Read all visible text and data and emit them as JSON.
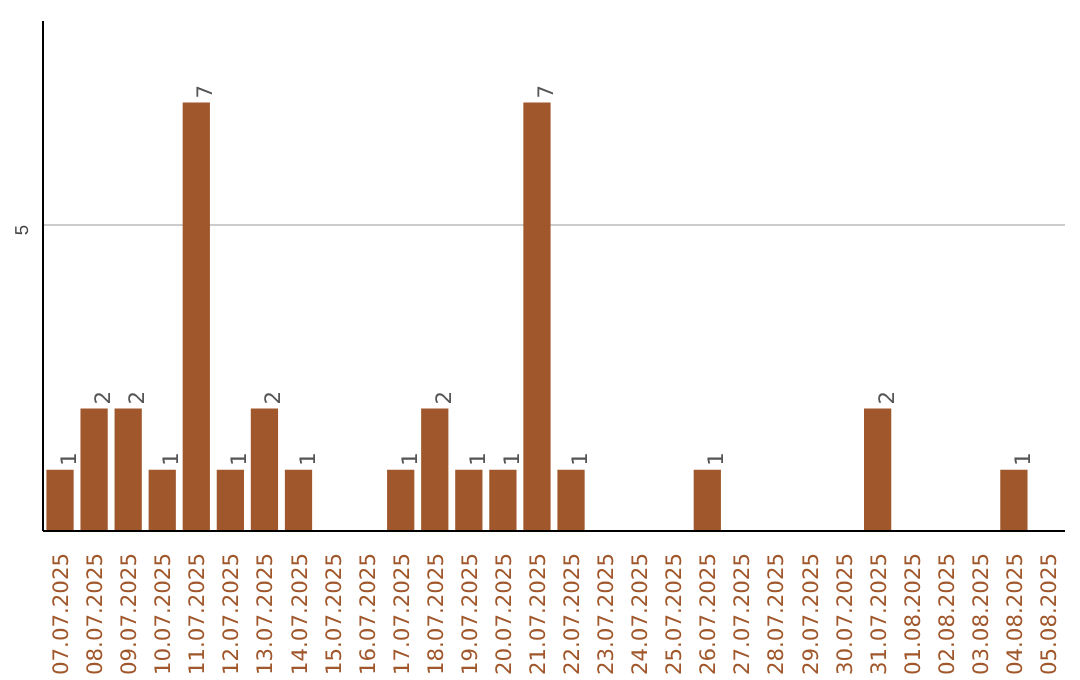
{
  "chart_data": {
    "type": "bar",
    "categories": [
      "07.07.2025",
      "08.07.2025",
      "09.07.2025",
      "10.07.2025",
      "11.07.2025",
      "12.07.2025",
      "13.07.2025",
      "14.07.2025",
      "15.07.2025",
      "16.07.2025",
      "17.07.2025",
      "18.07.2025",
      "19.07.2025",
      "20.07.2025",
      "21.07.2025",
      "22.07.2025",
      "23.07.2025",
      "24.07.2025",
      "25.07.2025",
      "26.07.2025",
      "27.07.2025",
      "28.07.2025",
      "29.07.2025",
      "30.07.2025",
      "31.07.2025",
      "01.08.2025",
      "02.08.2025",
      "03.08.2025",
      "04.08.2025",
      "05.08.2025"
    ],
    "values": [
      1,
      2,
      2,
      1,
      7,
      1,
      2,
      1,
      null,
      null,
      1,
      2,
      1,
      1,
      7,
      1,
      null,
      null,
      null,
      1,
      null,
      null,
      null,
      null,
      2,
      null,
      null,
      null,
      1,
      null
    ],
    "color": "#a0572b",
    "ylim": [
      0,
      8.33
    ],
    "yticks": [
      5
    ],
    "grid": "y",
    "data_labels": true
  }
}
